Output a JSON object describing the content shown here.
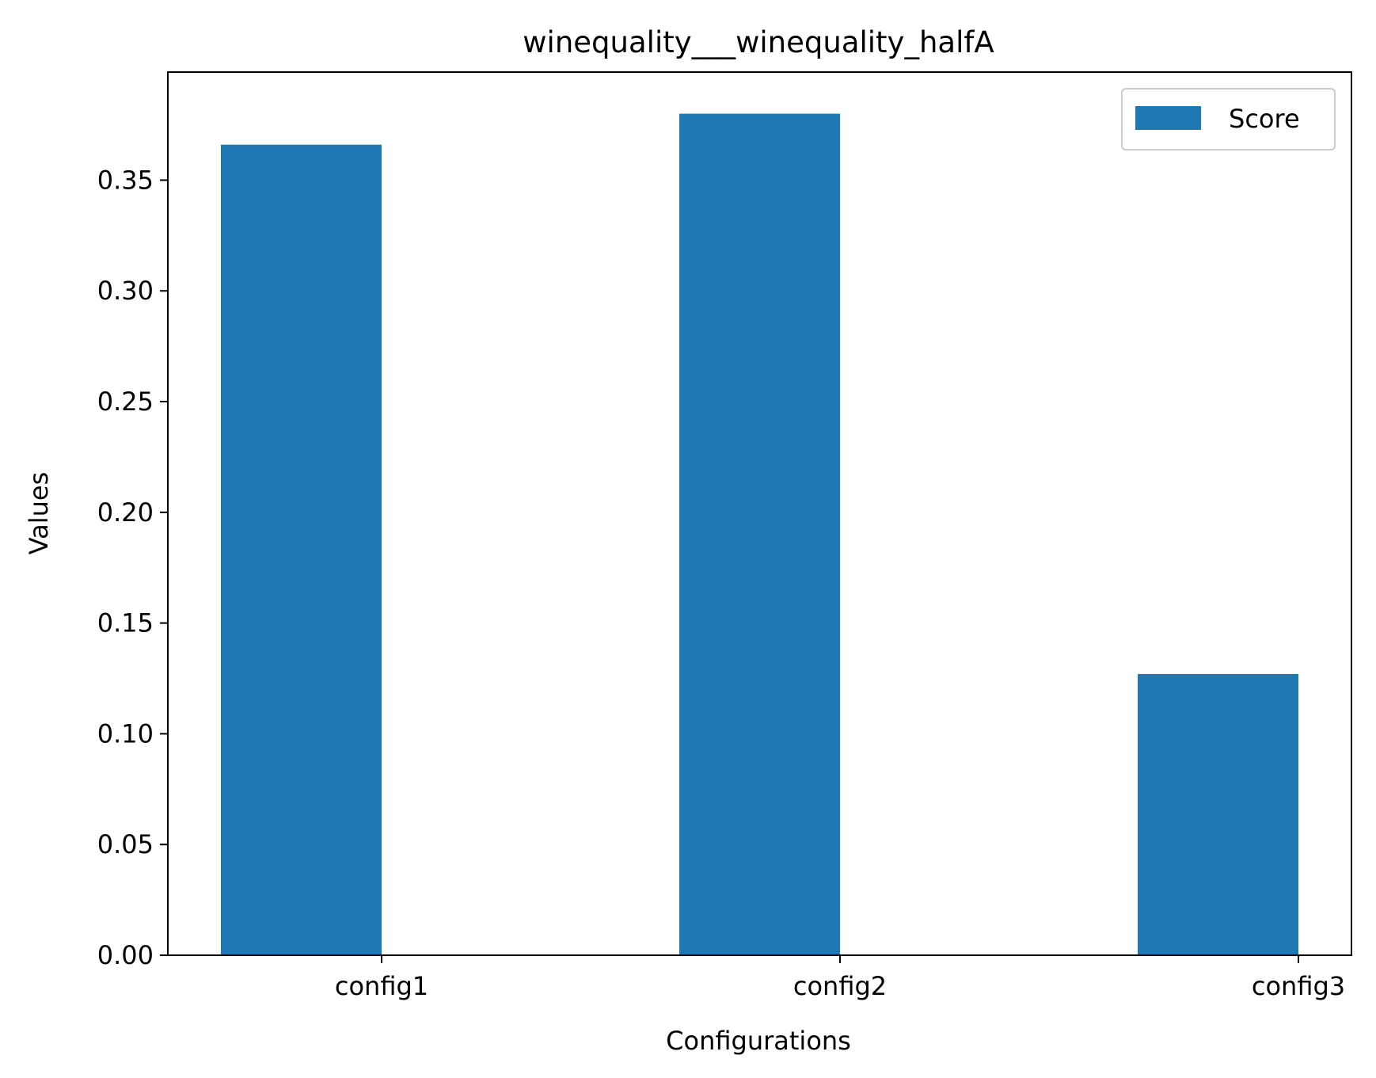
{
  "chart_data": {
    "type": "bar",
    "title": "winequality___winequality_halfA",
    "xlabel": "Configurations",
    "ylabel": "Values",
    "categories": [
      "config1",
      "config2",
      "config3"
    ],
    "series": [
      {
        "name": "Score",
        "values": [
          0.366,
          0.38,
          0.127
        ],
        "color": "#1f77b4"
      }
    ],
    "ylim": [
      0,
      0.3988
    ],
    "yticks": [
      0.0,
      0.05,
      0.1,
      0.15,
      0.2,
      0.25,
      0.3,
      0.35
    ],
    "ytick_labels": [
      "0.00",
      "0.05",
      "0.10",
      "0.15",
      "0.20",
      "0.25",
      "0.30",
      "0.35"
    ],
    "grid": false,
    "legend_position": "top-right"
  }
}
